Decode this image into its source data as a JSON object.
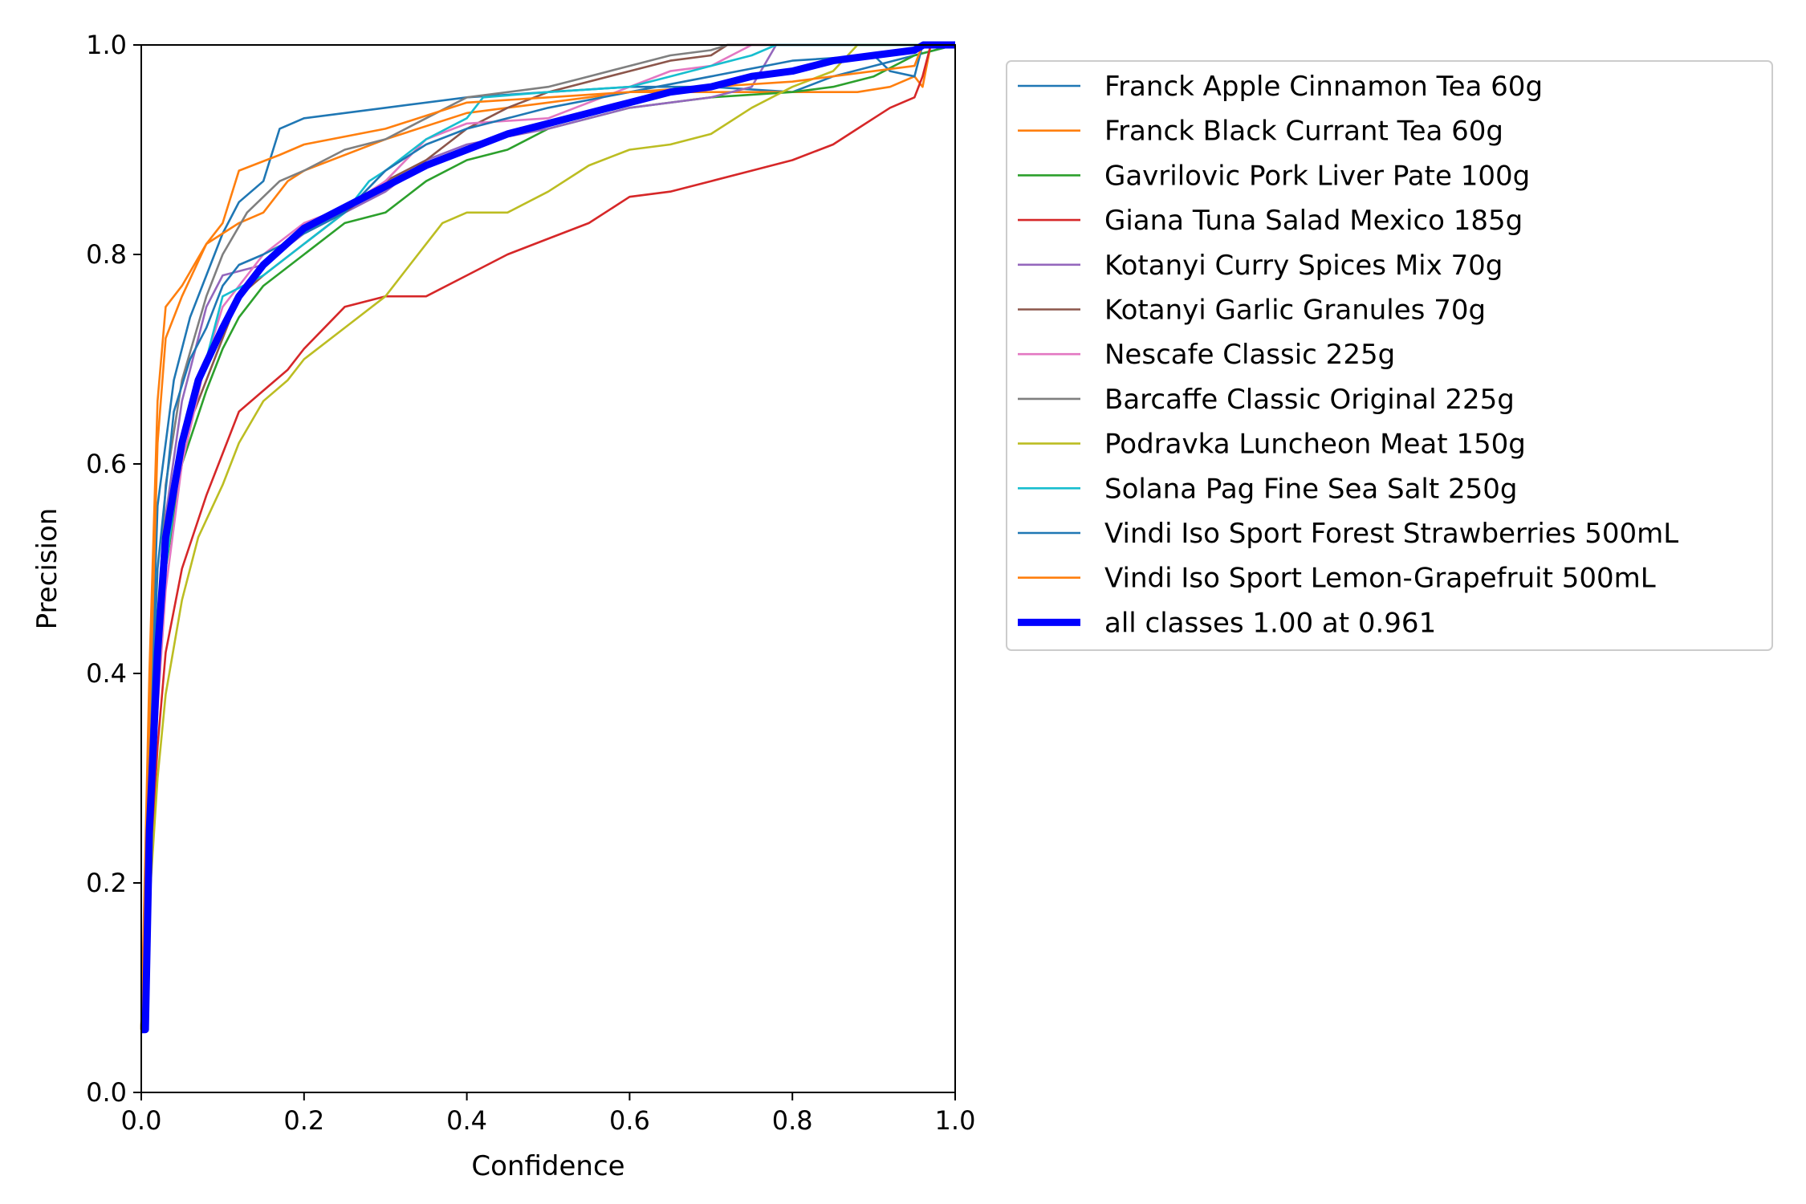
{
  "chart_data": {
    "type": "line",
    "title": "",
    "xlabel": "Confidence",
    "ylabel": "Precision",
    "xlim": [
      0.0,
      1.0
    ],
    "ylim": [
      0.0,
      1.0
    ],
    "xticks": [
      "0.0",
      "0.2",
      "0.4",
      "0.6",
      "0.8",
      "1.0"
    ],
    "yticks": [
      "0.0",
      "0.2",
      "0.4",
      "0.6",
      "0.8",
      "1.0"
    ],
    "grid": false,
    "legend_position": "outside-right-top",
    "series": [
      {
        "name": "Franck Apple Cinnamon Tea 60g",
        "color": "#1f77b4",
        "width": "thin",
        "points": [
          [
            0,
            0.06
          ],
          [
            0.01,
            0.32
          ],
          [
            0.02,
            0.56
          ],
          [
            0.04,
            0.68
          ],
          [
            0.06,
            0.74
          ],
          [
            0.08,
            0.78
          ],
          [
            0.1,
            0.82
          ],
          [
            0.12,
            0.85
          ],
          [
            0.15,
            0.87
          ],
          [
            0.17,
            0.92
          ],
          [
            0.2,
            0.93
          ],
          [
            0.3,
            0.94
          ],
          [
            0.4,
            0.95
          ],
          [
            0.5,
            0.955
          ],
          [
            0.6,
            0.96
          ],
          [
            0.7,
            0.96
          ],
          [
            0.8,
            0.955
          ],
          [
            0.85,
            0.97
          ],
          [
            0.9,
            0.98
          ],
          [
            0.95,
            0.99
          ],
          [
            1.0,
            1.0
          ]
        ]
      },
      {
        "name": "Franck Black Currant Tea 60g",
        "color": "#ff7f0e",
        "width": "thin",
        "points": [
          [
            0,
            0.06
          ],
          [
            0.01,
            0.35
          ],
          [
            0.02,
            0.62
          ],
          [
            0.03,
            0.72
          ],
          [
            0.05,
            0.76
          ],
          [
            0.08,
            0.81
          ],
          [
            0.12,
            0.83
          ],
          [
            0.15,
            0.84
          ],
          [
            0.18,
            0.87
          ],
          [
            0.2,
            0.88
          ],
          [
            0.3,
            0.91
          ],
          [
            0.4,
            0.935
          ],
          [
            0.5,
            0.945
          ],
          [
            0.6,
            0.955
          ],
          [
            0.7,
            0.955
          ],
          [
            0.8,
            0.955
          ],
          [
            0.88,
            0.955
          ],
          [
            0.92,
            0.96
          ],
          [
            0.95,
            0.97
          ],
          [
            0.96,
            0.96
          ],
          [
            0.97,
            1.0
          ],
          [
            1.0,
            1.0
          ]
        ]
      },
      {
        "name": "Gavrilovic Pork Liver Pate 100g",
        "color": "#2ca02c",
        "width": "thin",
        "points": [
          [
            0,
            0.06
          ],
          [
            0.01,
            0.25
          ],
          [
            0.03,
            0.5
          ],
          [
            0.05,
            0.6
          ],
          [
            0.08,
            0.67
          ],
          [
            0.1,
            0.71
          ],
          [
            0.12,
            0.74
          ],
          [
            0.15,
            0.77
          ],
          [
            0.2,
            0.8
          ],
          [
            0.25,
            0.83
          ],
          [
            0.3,
            0.84
          ],
          [
            0.35,
            0.87
          ],
          [
            0.4,
            0.89
          ],
          [
            0.45,
            0.9
          ],
          [
            0.5,
            0.92
          ],
          [
            0.6,
            0.94
          ],
          [
            0.7,
            0.95
          ],
          [
            0.8,
            0.955
          ],
          [
            0.85,
            0.96
          ],
          [
            0.9,
            0.97
          ],
          [
            0.95,
            0.99
          ],
          [
            1.0,
            1.0
          ]
        ]
      },
      {
        "name": "Giana Tuna Salad Mexico 185g",
        "color": "#d62728",
        "width": "thin",
        "points": [
          [
            0,
            0.06
          ],
          [
            0.01,
            0.2
          ],
          [
            0.02,
            0.33
          ],
          [
            0.03,
            0.42
          ],
          [
            0.05,
            0.5
          ],
          [
            0.08,
            0.57
          ],
          [
            0.1,
            0.61
          ],
          [
            0.12,
            0.65
          ],
          [
            0.15,
            0.67
          ],
          [
            0.18,
            0.69
          ],
          [
            0.2,
            0.71
          ],
          [
            0.25,
            0.75
          ],
          [
            0.3,
            0.76
          ],
          [
            0.35,
            0.76
          ],
          [
            0.4,
            0.78
          ],
          [
            0.45,
            0.8
          ],
          [
            0.5,
            0.815
          ],
          [
            0.55,
            0.83
          ],
          [
            0.6,
            0.855
          ],
          [
            0.65,
            0.86
          ],
          [
            0.7,
            0.87
          ],
          [
            0.75,
            0.88
          ],
          [
            0.8,
            0.89
          ],
          [
            0.85,
            0.905
          ],
          [
            0.88,
            0.92
          ],
          [
            0.9,
            0.93
          ],
          [
            0.92,
            0.94
          ],
          [
            0.95,
            0.95
          ],
          [
            0.96,
            0.97
          ],
          [
            0.97,
            1.0
          ],
          [
            1.0,
            1.0
          ]
        ]
      },
      {
        "name": "Kotanyi Curry Spices Mix 70g",
        "color": "#9467bd",
        "width": "thin",
        "points": [
          [
            0,
            0.06
          ],
          [
            0.01,
            0.28
          ],
          [
            0.03,
            0.55
          ],
          [
            0.05,
            0.66
          ],
          [
            0.08,
            0.75
          ],
          [
            0.1,
            0.78
          ],
          [
            0.15,
            0.79
          ],
          [
            0.2,
            0.82
          ],
          [
            0.25,
            0.84
          ],
          [
            0.3,
            0.86
          ],
          [
            0.35,
            0.89
          ],
          [
            0.4,
            0.905
          ],
          [
            0.5,
            0.92
          ],
          [
            0.6,
            0.94
          ],
          [
            0.7,
            0.95
          ],
          [
            0.75,
            0.96
          ],
          [
            0.78,
            1.0
          ],
          [
            1.0,
            1.0
          ]
        ]
      },
      {
        "name": "Kotanyi Garlic Granules 70g",
        "color": "#8c564b",
        "width": "thin",
        "points": [
          [
            0,
            0.06
          ],
          [
            0.01,
            0.27
          ],
          [
            0.03,
            0.52
          ],
          [
            0.05,
            0.62
          ],
          [
            0.08,
            0.68
          ],
          [
            0.1,
            0.72
          ],
          [
            0.12,
            0.76
          ],
          [
            0.15,
            0.78
          ],
          [
            0.2,
            0.81
          ],
          [
            0.25,
            0.84
          ],
          [
            0.3,
            0.87
          ],
          [
            0.35,
            0.89
          ],
          [
            0.4,
            0.92
          ],
          [
            0.45,
            0.94
          ],
          [
            0.5,
            0.955
          ],
          [
            0.6,
            0.975
          ],
          [
            0.65,
            0.985
          ],
          [
            0.7,
            0.99
          ],
          [
            0.72,
            1.0
          ],
          [
            1.0,
            1.0
          ]
        ]
      },
      {
        "name": "Nescafe Classic 225g",
        "color": "#e377c2",
        "width": "thin",
        "points": [
          [
            0,
            0.06
          ],
          [
            0.01,
            0.25
          ],
          [
            0.03,
            0.48
          ],
          [
            0.05,
            0.6
          ],
          [
            0.08,
            0.7
          ],
          [
            0.1,
            0.75
          ],
          [
            0.15,
            0.8
          ],
          [
            0.2,
            0.83
          ],
          [
            0.25,
            0.845
          ],
          [
            0.3,
            0.87
          ],
          [
            0.35,
            0.91
          ],
          [
            0.4,
            0.925
          ],
          [
            0.5,
            0.93
          ],
          [
            0.6,
            0.96
          ],
          [
            0.65,
            0.975
          ],
          [
            0.7,
            0.98
          ],
          [
            0.75,
            1.0
          ],
          [
            1.0,
            1.0
          ]
        ]
      },
      {
        "name": "Barcaffe Classic Original 225g",
        "color": "#7f7f7f",
        "width": "thin",
        "points": [
          [
            0,
            0.06
          ],
          [
            0.01,
            0.3
          ],
          [
            0.03,
            0.58
          ],
          [
            0.05,
            0.68
          ],
          [
            0.08,
            0.76
          ],
          [
            0.1,
            0.8
          ],
          [
            0.13,
            0.84
          ],
          [
            0.17,
            0.87
          ],
          [
            0.2,
            0.88
          ],
          [
            0.25,
            0.9
          ],
          [
            0.3,
            0.91
          ],
          [
            0.35,
            0.93
          ],
          [
            0.4,
            0.95
          ],
          [
            0.5,
            0.96
          ],
          [
            0.55,
            0.97
          ],
          [
            0.6,
            0.98
          ],
          [
            0.65,
            0.99
          ],
          [
            0.7,
            0.995
          ],
          [
            0.72,
            1.0
          ],
          [
            1.0,
            1.0
          ]
        ]
      },
      {
        "name": "Podravka Luncheon Meat 150g",
        "color": "#bcbd22",
        "width": "thin",
        "points": [
          [
            0,
            0.06
          ],
          [
            0.01,
            0.18
          ],
          [
            0.02,
            0.3
          ],
          [
            0.03,
            0.38
          ],
          [
            0.05,
            0.47
          ],
          [
            0.07,
            0.53
          ],
          [
            0.1,
            0.58
          ],
          [
            0.12,
            0.62
          ],
          [
            0.15,
            0.66
          ],
          [
            0.18,
            0.68
          ],
          [
            0.2,
            0.7
          ],
          [
            0.25,
            0.73
          ],
          [
            0.3,
            0.76
          ],
          [
            0.33,
            0.79
          ],
          [
            0.35,
            0.81
          ],
          [
            0.37,
            0.83
          ],
          [
            0.4,
            0.84
          ],
          [
            0.45,
            0.84
          ],
          [
            0.5,
            0.86
          ],
          [
            0.55,
            0.885
          ],
          [
            0.6,
            0.9
          ],
          [
            0.65,
            0.905
          ],
          [
            0.7,
            0.915
          ],
          [
            0.75,
            0.94
          ],
          [
            0.8,
            0.96
          ],
          [
            0.85,
            0.975
          ],
          [
            0.88,
            1.0
          ],
          [
            1.0,
            1.0
          ]
        ]
      },
      {
        "name": "Solana Pag Fine Sea Salt 250g",
        "color": "#17becf",
        "width": "thin",
        "points": [
          [
            0,
            0.06
          ],
          [
            0.01,
            0.26
          ],
          [
            0.03,
            0.5
          ],
          [
            0.05,
            0.62
          ],
          [
            0.08,
            0.7
          ],
          [
            0.1,
            0.76
          ],
          [
            0.15,
            0.78
          ],
          [
            0.2,
            0.81
          ],
          [
            0.25,
            0.84
          ],
          [
            0.28,
            0.87
          ],
          [
            0.3,
            0.88
          ],
          [
            0.35,
            0.91
          ],
          [
            0.4,
            0.93
          ],
          [
            0.42,
            0.95
          ],
          [
            0.5,
            0.955
          ],
          [
            0.6,
            0.96
          ],
          [
            0.65,
            0.97
          ],
          [
            0.7,
            0.98
          ],
          [
            0.75,
            0.99
          ],
          [
            0.78,
            1.0
          ],
          [
            1.0,
            1.0
          ]
        ]
      },
      {
        "name": "Vindi Iso Sport Forest Strawberries 500mL",
        "color": "#1f77b4",
        "width": "thin",
        "points": [
          [
            0,
            0.06
          ],
          [
            0.01,
            0.3
          ],
          [
            0.02,
            0.5
          ],
          [
            0.04,
            0.65
          ],
          [
            0.06,
            0.7
          ],
          [
            0.08,
            0.73
          ],
          [
            0.1,
            0.77
          ],
          [
            0.12,
            0.79
          ],
          [
            0.15,
            0.8
          ],
          [
            0.2,
            0.82
          ],
          [
            0.25,
            0.84
          ],
          [
            0.3,
            0.88
          ],
          [
            0.35,
            0.905
          ],
          [
            0.4,
            0.92
          ],
          [
            0.5,
            0.94
          ],
          [
            0.6,
            0.955
          ],
          [
            0.7,
            0.97
          ],
          [
            0.8,
            0.985
          ],
          [
            0.9,
            0.99
          ],
          [
            0.92,
            0.975
          ],
          [
            0.95,
            0.97
          ],
          [
            0.96,
            1.0
          ],
          [
            1.0,
            1.0
          ]
        ]
      },
      {
        "name": "Vindi Iso Sport Lemon-Grapefruit 500mL",
        "color": "#ff7f0e",
        "width": "thin",
        "points": [
          [
            0,
            0.06
          ],
          [
            0.01,
            0.4
          ],
          [
            0.02,
            0.66
          ],
          [
            0.03,
            0.75
          ],
          [
            0.05,
            0.77
          ],
          [
            0.08,
            0.81
          ],
          [
            0.1,
            0.83
          ],
          [
            0.12,
            0.88
          ],
          [
            0.17,
            0.895
          ],
          [
            0.2,
            0.905
          ],
          [
            0.3,
            0.92
          ],
          [
            0.4,
            0.945
          ],
          [
            0.5,
            0.95
          ],
          [
            0.6,
            0.955
          ],
          [
            0.7,
            0.96
          ],
          [
            0.8,
            0.965
          ],
          [
            0.9,
            0.975
          ],
          [
            0.95,
            0.98
          ],
          [
            0.96,
            1.0
          ],
          [
            1.0,
            1.0
          ]
        ]
      },
      {
        "name": "all classes 1.00 at 0.961",
        "color": "#0000ff",
        "width": "thick",
        "points": [
          [
            0,
            0.06
          ],
          [
            0.005,
            0.06
          ],
          [
            0.01,
            0.25
          ],
          [
            0.02,
            0.42
          ],
          [
            0.03,
            0.53
          ],
          [
            0.05,
            0.62
          ],
          [
            0.07,
            0.68
          ],
          [
            0.1,
            0.73
          ],
          [
            0.12,
            0.76
          ],
          [
            0.15,
            0.79
          ],
          [
            0.2,
            0.825
          ],
          [
            0.25,
            0.845
          ],
          [
            0.3,
            0.865
          ],
          [
            0.35,
            0.885
          ],
          [
            0.4,
            0.9
          ],
          [
            0.45,
            0.915
          ],
          [
            0.5,
            0.925
          ],
          [
            0.55,
            0.935
          ],
          [
            0.6,
            0.945
          ],
          [
            0.65,
            0.955
          ],
          [
            0.7,
            0.96
          ],
          [
            0.75,
            0.97
          ],
          [
            0.8,
            0.975
          ],
          [
            0.85,
            0.985
          ],
          [
            0.9,
            0.99
          ],
          [
            0.95,
            0.995
          ],
          [
            0.961,
            1.0
          ],
          [
            1.0,
            1.0
          ]
        ]
      }
    ]
  }
}
